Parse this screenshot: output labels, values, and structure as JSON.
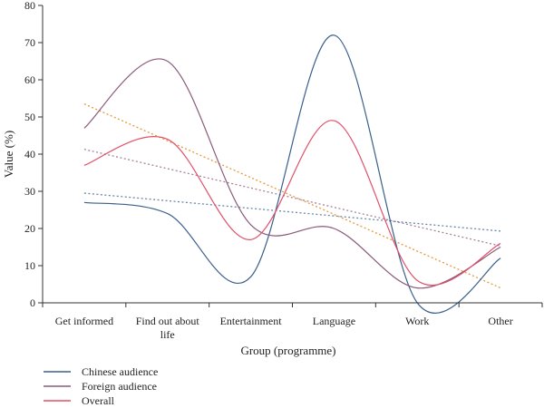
{
  "chart_data": {
    "type": "line",
    "xlabel": "Group (programme)",
    "ylabel": "Value (%)",
    "ylim": [
      0,
      80
    ],
    "yticks": [
      0,
      10,
      20,
      30,
      40,
      50,
      60,
      70,
      80
    ],
    "categories": [
      [
        "Get informed"
      ],
      [
        "Find out about",
        "life"
      ],
      [
        "Entertainment"
      ],
      [
        "Language"
      ],
      [
        "Work"
      ],
      [
        "Other"
      ]
    ],
    "series": [
      {
        "name": "Chinese audience",
        "color": "#3a5f8a",
        "values": [
          27,
          24,
          7,
          72,
          0,
          12
        ],
        "trend": [
          29.5,
          19.3
        ]
      },
      {
        "name": "Foreign audience",
        "color": "#8a5a7a",
        "values": [
          47,
          65,
          21,
          20,
          4,
          15
        ],
        "trend": [
          41.3,
          15.3
        ]
      },
      {
        "name": "Overall",
        "color": "#e0506a",
        "values": [
          37,
          44,
          17,
          49,
          6,
          16
        ],
        "trend": [
          53.5,
          4.0
        ],
        "trend_color": "#e69a3a"
      }
    ],
    "legend_position": "bottom-left",
    "grid": false,
    "trendlines": "dotted linear"
  }
}
